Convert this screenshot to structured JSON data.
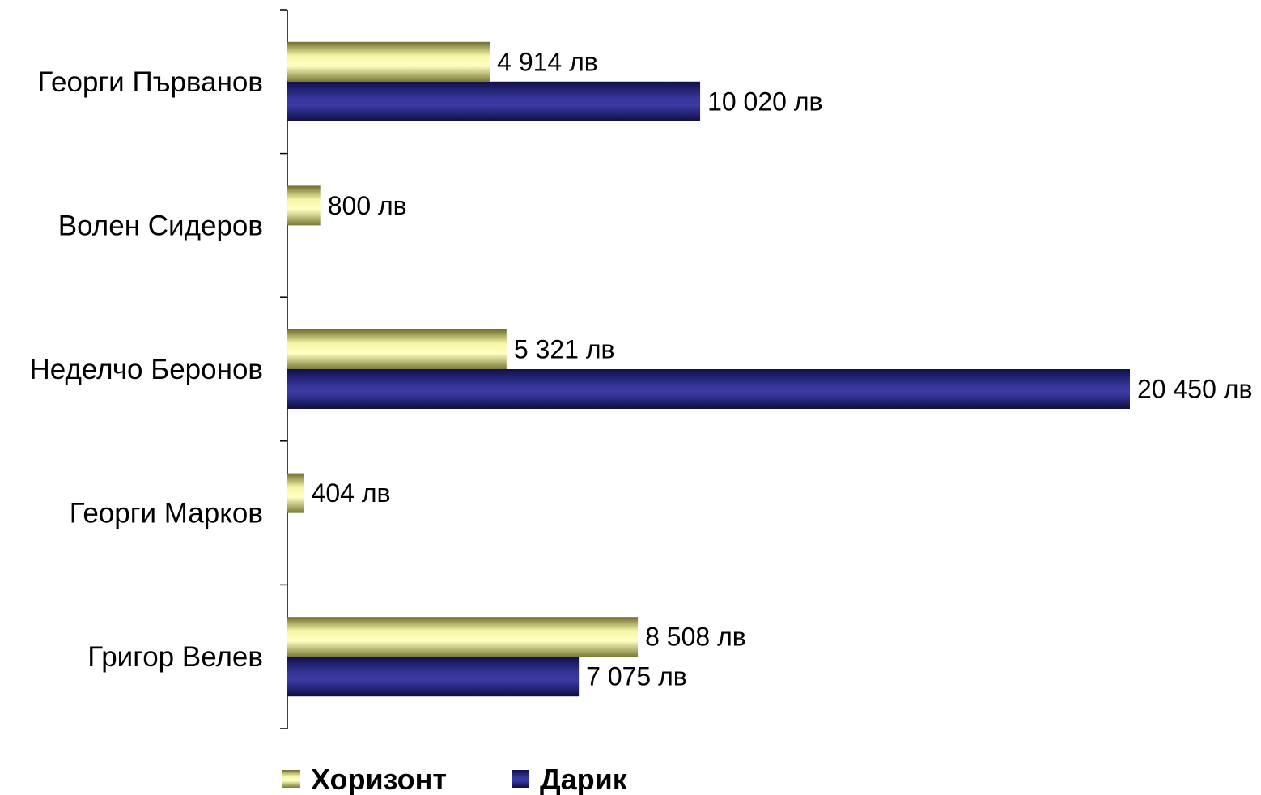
{
  "chart_data": {
    "type": "bar",
    "orientation": "horizontal",
    "categories": [
      "Георги Първанов",
      "Волен Сидеров",
      "Неделчо Беронов",
      "Георги Марков",
      "Григор Велев"
    ],
    "series": [
      {
        "name": "Хоризонт",
        "values": [
          4914,
          800,
          5321,
          404,
          8508
        ],
        "labels": [
          "4 914 лв",
          "800 лв",
          "5 321 лв",
          "404 лв",
          "8 508 лв"
        ],
        "color": "#E8E88A"
      },
      {
        "name": "Дарик",
        "values": [
          10020,
          null,
          20450,
          null,
          7075
        ],
        "labels": [
          "10 020 лв",
          "",
          "20 450 лв",
          "",
          "7 075 лв"
        ],
        "color": "#2B2B8C"
      }
    ],
    "xlim": [
      0,
      20450
    ],
    "grid": false,
    "legend_position": "bottom"
  }
}
